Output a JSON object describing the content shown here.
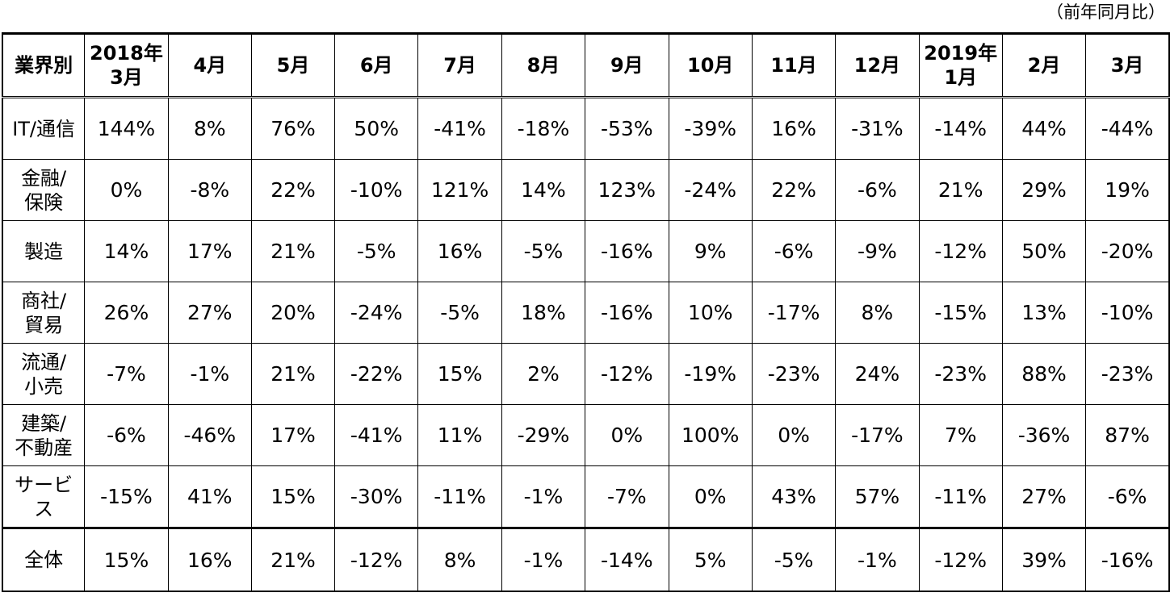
{
  "note": "（前年同月比）",
  "table": {
    "headers": [
      [
        "業界別"
      ],
      [
        "2018年",
        "3月"
      ],
      [
        "4月"
      ],
      [
        "5月"
      ],
      [
        "6月"
      ],
      [
        "7月"
      ],
      [
        "8月"
      ],
      [
        "9月"
      ],
      [
        "10月"
      ],
      [
        "11月"
      ],
      [
        "12月"
      ],
      [
        "2019年",
        "1月"
      ],
      [
        "2月"
      ],
      [
        "3月"
      ]
    ],
    "rows": [
      {
        "category": [
          "IT/通信"
        ],
        "values": [
          "144%",
          "8%",
          "76%",
          "50%",
          "-41%",
          "-18%",
          "-53%",
          "-39%",
          "16%",
          "-31%",
          "-14%",
          "44%",
          "-44%"
        ]
      },
      {
        "category": [
          "金融/",
          "保険"
        ],
        "values": [
          "0%",
          "-8%",
          "22%",
          "-10%",
          "121%",
          "14%",
          "123%",
          "-24%",
          "22%",
          "-6%",
          "21%",
          "29%",
          "19%"
        ]
      },
      {
        "category": [
          "製造"
        ],
        "values": [
          "14%",
          "17%",
          "21%",
          "-5%",
          "16%",
          "-5%",
          "-16%",
          "9%",
          "-6%",
          "-9%",
          "-12%",
          "50%",
          "-20%"
        ]
      },
      {
        "category": [
          "商社/",
          "貿易"
        ],
        "values": [
          "26%",
          "27%",
          "20%",
          "-24%",
          "-5%",
          "18%",
          "-16%",
          "10%",
          "-17%",
          "8%",
          "-15%",
          "13%",
          "-10%"
        ]
      },
      {
        "category": [
          "流通/",
          "小売"
        ],
        "values": [
          "-7%",
          "-1%",
          "21%",
          "-22%",
          "15%",
          "2%",
          "-12%",
          "-19%",
          "-23%",
          "24%",
          "-23%",
          "88%",
          "-23%"
        ]
      },
      {
        "category": [
          "建築/",
          "不動産"
        ],
        "values": [
          "-6%",
          "-46%",
          "17%",
          "-41%",
          "11%",
          "-29%",
          "0%",
          "100%",
          "0%",
          "-17%",
          "7%",
          "-36%",
          "87%"
        ]
      },
      {
        "category": [
          "サービ",
          "ス"
        ],
        "values": [
          "-15%",
          "41%",
          "15%",
          "-30%",
          "-11%",
          "-1%",
          "-7%",
          "0%",
          "43%",
          "57%",
          "-11%",
          "27%",
          "-6%"
        ]
      }
    ],
    "total": {
      "category": [
        "全体"
      ],
      "values": [
        "15%",
        "16%",
        "21%",
        "-12%",
        "8%",
        "-1%",
        "-14%",
        "5%",
        "-5%",
        "-1%",
        "-12%",
        "39%",
        "-16%"
      ]
    }
  }
}
